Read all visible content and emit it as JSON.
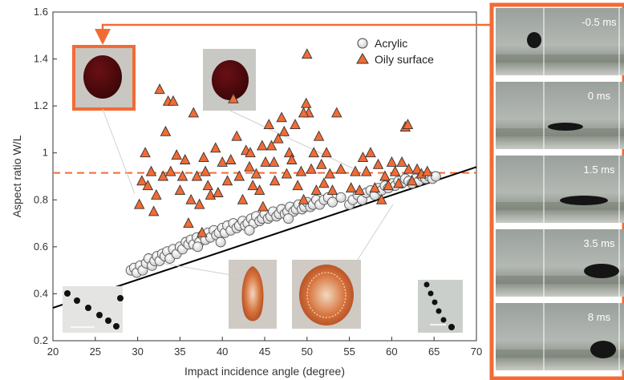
{
  "chart_data": {
    "type": "scatter",
    "xlabel": "Impact incidence angle (degree)",
    "ylabel": "Aspect ratio W/L",
    "xlim": [
      20,
      70
    ],
    "ylim": [
      0.2,
      1.6
    ],
    "x_ticks": [
      "20",
      "25",
      "30",
      "35",
      "40",
      "45",
      "50",
      "55",
      "60",
      "65",
      "70"
    ],
    "y_ticks": [
      "0.2",
      "0.4",
      "0.6",
      "0.8",
      "1",
      "1.2",
      "1.4",
      "1.6"
    ],
    "grid": false,
    "legend_placement": "top-right",
    "reference_line": {
      "style": "dashed",
      "color": "#f26b35",
      "y": 0.915
    },
    "fit_line": {
      "style": "solid",
      "color": "#000000",
      "x": [
        20,
        70
      ],
      "y": [
        0.34,
        0.94
      ]
    },
    "series": [
      {
        "name": "Acrylic",
        "marker": "circle",
        "color": "#e6e6e6",
        "points": [
          [
            29.2,
            0.5
          ],
          [
            29.6,
            0.51
          ],
          [
            29.9,
            0.49
          ],
          [
            30.3,
            0.52
          ],
          [
            30.6,
            0.5
          ],
          [
            31.0,
            0.53
          ],
          [
            31.3,
            0.55
          ],
          [
            31.7,
            0.52
          ],
          [
            32.0,
            0.54
          ],
          [
            32.3,
            0.56
          ],
          [
            32.6,
            0.54
          ],
          [
            32.9,
            0.57
          ],
          [
            33.2,
            0.56
          ],
          [
            33.5,
            0.58
          ],
          [
            33.8,
            0.55
          ],
          [
            34.2,
            0.59
          ],
          [
            34.6,
            0.57
          ],
          [
            35.0,
            0.6
          ],
          [
            35.3,
            0.59
          ],
          [
            35.7,
            0.62
          ],
          [
            36.0,
            0.61
          ],
          [
            36.3,
            0.63
          ],
          [
            36.6,
            0.61
          ],
          [
            37.0,
            0.64
          ],
          [
            37.3,
            0.62
          ],
          [
            37.7,
            0.65
          ],
          [
            38.0,
            0.63
          ],
          [
            38.3,
            0.66
          ],
          [
            38.6,
            0.64
          ],
          [
            39.0,
            0.67
          ],
          [
            39.3,
            0.65
          ],
          [
            39.6,
            0.66
          ],
          [
            40.0,
            0.68
          ],
          [
            40.3,
            0.66
          ],
          [
            40.6,
            0.69
          ],
          [
            41.0,
            0.67
          ],
          [
            41.3,
            0.7
          ],
          [
            41.7,
            0.68
          ],
          [
            42.0,
            0.69
          ],
          [
            42.4,
            0.71
          ],
          [
            42.7,
            0.69
          ],
          [
            43.0,
            0.7
          ],
          [
            43.4,
            0.72
          ],
          [
            43.7,
            0.7
          ],
          [
            44.0,
            0.73
          ],
          [
            44.4,
            0.71
          ],
          [
            44.7,
            0.72
          ],
          [
            45.0,
            0.74
          ],
          [
            45.4,
            0.72
          ],
          [
            45.7,
            0.73
          ],
          [
            46.0,
            0.75
          ],
          [
            46.4,
            0.73
          ],
          [
            46.7,
            0.74
          ],
          [
            47.0,
            0.76
          ],
          [
            47.4,
            0.74
          ],
          [
            47.7,
            0.75
          ],
          [
            48.0,
            0.77
          ],
          [
            48.4,
            0.75
          ],
          [
            48.7,
            0.76
          ],
          [
            49.0,
            0.78
          ],
          [
            49.4,
            0.76
          ],
          [
            49.7,
            0.77
          ],
          [
            50.0,
            0.79
          ],
          [
            50.4,
            0.77
          ],
          [
            50.7,
            0.78
          ],
          [
            51.1,
            0.8
          ],
          [
            51.5,
            0.78
          ],
          [
            52.0,
            0.8
          ],
          [
            52.5,
            0.81
          ],
          [
            53.0,
            0.79
          ],
          [
            54.0,
            0.81
          ],
          [
            55.0,
            0.78
          ],
          [
            55.4,
            0.8
          ],
          [
            56.0,
            0.82
          ],
          [
            56.5,
            0.8
          ],
          [
            57.0,
            0.83
          ],
          [
            57.5,
            0.84
          ],
          [
            58.0,
            0.82
          ],
          [
            58.4,
            0.85
          ],
          [
            58.8,
            0.84
          ],
          [
            59.2,
            0.86
          ],
          [
            59.6,
            0.85
          ],
          [
            60.0,
            0.87
          ],
          [
            60.4,
            0.86
          ],
          [
            60.8,
            0.88
          ],
          [
            61.2,
            0.87
          ],
          [
            61.6,
            0.89
          ],
          [
            62.0,
            0.88
          ],
          [
            62.4,
            0.87
          ],
          [
            62.8,
            0.89
          ],
          [
            63.2,
            0.88
          ],
          [
            63.6,
            0.9
          ],
          [
            64.0,
            0.89
          ],
          [
            64.4,
            0.9
          ],
          [
            64.8,
            0.89
          ],
          [
            65.2,
            0.9
          ],
          [
            37.1,
            0.6
          ],
          [
            39.8,
            0.62
          ],
          [
            43.2,
            0.67
          ],
          [
            47.8,
            0.72
          ]
        ]
      },
      {
        "name": "Oily surface",
        "marker": "triangle",
        "color": "#f26b35",
        "points": [
          [
            30.2,
            0.78
          ],
          [
            30.5,
            0.88
          ],
          [
            30.9,
            1.0
          ],
          [
            31.2,
            0.86
          ],
          [
            31.6,
            0.92
          ],
          [
            31.9,
            0.75
          ],
          [
            32.2,
            0.82
          ],
          [
            32.6,
            1.27
          ],
          [
            33.0,
            0.9
          ],
          [
            33.3,
            1.09
          ],
          [
            33.6,
            1.22
          ],
          [
            33.9,
            0.92
          ],
          [
            34.2,
            1.22
          ],
          [
            34.6,
            0.99
          ],
          [
            35.0,
            0.84
          ],
          [
            35.3,
            0.9
          ],
          [
            35.6,
            0.97
          ],
          [
            36.0,
            0.7
          ],
          [
            36.3,
            0.8
          ],
          [
            36.6,
            1.17
          ],
          [
            37.0,
            0.9
          ],
          [
            37.3,
            0.78
          ],
          [
            37.6,
            0.66
          ],
          [
            38.0,
            0.92
          ],
          [
            38.3,
            0.86
          ],
          [
            38.6,
            0.82
          ],
          [
            39.2,
            1.02
          ],
          [
            40.0,
            0.96
          ],
          [
            40.6,
            0.88
          ],
          [
            41.0,
            0.97
          ],
          [
            41.3,
            1.23
          ],
          [
            41.7,
            1.07
          ],
          [
            42.0,
            0.9
          ],
          [
            42.4,
            0.8
          ],
          [
            42.8,
            1.01
          ],
          [
            43.2,
            0.94
          ],
          [
            43.6,
            0.86
          ],
          [
            44.0,
            0.91
          ],
          [
            44.4,
            0.84
          ],
          [
            44.8,
            0.77
          ],
          [
            45.1,
            0.96
          ],
          [
            45.5,
            1.12
          ],
          [
            45.8,
            1.03
          ],
          [
            46.2,
            0.88
          ],
          [
            46.6,
            1.06
          ],
          [
            47.0,
            1.15
          ],
          [
            47.3,
            1.09
          ],
          [
            47.6,
            0.91
          ],
          [
            47.9,
            1.0
          ],
          [
            48.2,
            0.97
          ],
          [
            48.6,
            1.12
          ],
          [
            48.9,
            0.86
          ],
          [
            49.3,
            0.92
          ],
          [
            49.6,
            0.8
          ],
          [
            49.9,
            1.21
          ],
          [
            50.2,
            1.17
          ],
          [
            50.5,
            0.93
          ],
          [
            50.8,
            1.0
          ],
          [
            51.1,
            0.84
          ],
          [
            51.4,
            1.07
          ],
          [
            51.7,
            0.95
          ],
          [
            52.0,
            0.87
          ],
          [
            52.3,
            1.0
          ],
          [
            52.7,
            0.91
          ],
          [
            53.0,
            0.84
          ],
          [
            53.5,
            1.17
          ],
          [
            54.0,
            0.93
          ],
          [
            55.2,
            0.85
          ],
          [
            55.7,
            0.92
          ],
          [
            56.2,
            0.84
          ],
          [
            56.6,
            0.98
          ],
          [
            57.0,
            0.92
          ],
          [
            57.5,
            1.0
          ],
          [
            58.0,
            0.85
          ],
          [
            58.4,
            0.95
          ],
          [
            58.8,
            0.8
          ],
          [
            59.2,
            0.9
          ],
          [
            59.6,
            0.86
          ],
          [
            60.0,
            0.96
          ],
          [
            60.4,
            0.92
          ],
          [
            60.8,
            0.87
          ],
          [
            61.2,
            0.96
          ],
          [
            61.6,
            1.11
          ],
          [
            62.0,
            0.93
          ],
          [
            62.4,
            0.88
          ],
          [
            63.0,
            0.93
          ],
          [
            63.5,
            0.91
          ],
          [
            64.2,
            0.92
          ],
          [
            50.0,
            1.42
          ],
          [
            49.6,
            1.17
          ],
          [
            61.9,
            1.12
          ],
          [
            46.1,
            0.96
          ],
          [
            39.5,
            0.83
          ],
          [
            43.3,
            1.0
          ],
          [
            37.8,
            0.98
          ],
          [
            44.7,
            1.03
          ]
        ]
      }
    ]
  },
  "frames": [
    {
      "label": "-0.5 ms"
    },
    {
      "label": "0 ms"
    },
    {
      "label": "1.5 ms"
    },
    {
      "label": "3.5 ms"
    },
    {
      "label": "8 ms"
    }
  ],
  "colors": {
    "accent": "#f26b35",
    "fit_line": "#000000",
    "acrylic_fill": "#e6e6e6"
  }
}
